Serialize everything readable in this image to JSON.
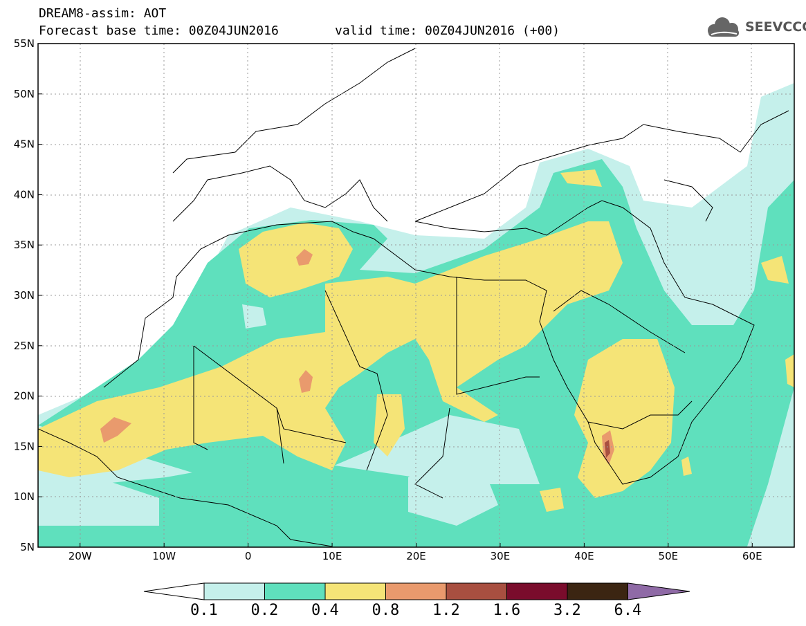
{
  "header": {
    "title": "DREAM8-assim: AOT",
    "base_time": "Forecast base time: 00Z04JUN2016",
    "valid_time": "valid time: 00Z04JUN2016 (+00)"
  },
  "logo": {
    "text": "SEEVCCC",
    "icon": "cloud-icon"
  },
  "map": {
    "lon_range": [
      -25,
      65
    ],
    "lat_range": [
      5,
      55
    ],
    "lat_ticks": [
      {
        "value": 55,
        "label": "55N"
      },
      {
        "value": 50,
        "label": "50N"
      },
      {
        "value": 45,
        "label": "45N"
      },
      {
        "value": 40,
        "label": "40N"
      },
      {
        "value": 35,
        "label": "35N"
      },
      {
        "value": 30,
        "label": "30N"
      },
      {
        "value": 25,
        "label": "25N"
      },
      {
        "value": 20,
        "label": "20N"
      },
      {
        "value": 15,
        "label": "15N"
      },
      {
        "value": 10,
        "label": "10N"
      },
      {
        "value": 5,
        "label": "5N"
      }
    ],
    "lon_ticks": [
      {
        "value": -20,
        "label": "20W"
      },
      {
        "value": -10,
        "label": "10W"
      },
      {
        "value": 0,
        "label": "0"
      },
      {
        "value": 10,
        "label": "10E"
      },
      {
        "value": 20,
        "label": "20E"
      },
      {
        "value": 30,
        "label": "30E"
      },
      {
        "value": 40,
        "label": "40E"
      },
      {
        "value": 50,
        "label": "50E"
      },
      {
        "value": 60,
        "label": "60E"
      }
    ],
    "grid": true
  },
  "colorbar": {
    "levels": [
      "0.1",
      "0.2",
      "0.4",
      "0.8",
      "1.2",
      "1.6",
      "3.2",
      "6.4"
    ],
    "colors": [
      "#ffffff",
      "#c5f0eb",
      "#5fe0bd",
      "#f5e477",
      "#e99a6d",
      "#a84f40",
      "#7a0c2c",
      "#3b2512",
      "#8f6aa6"
    ]
  }
}
